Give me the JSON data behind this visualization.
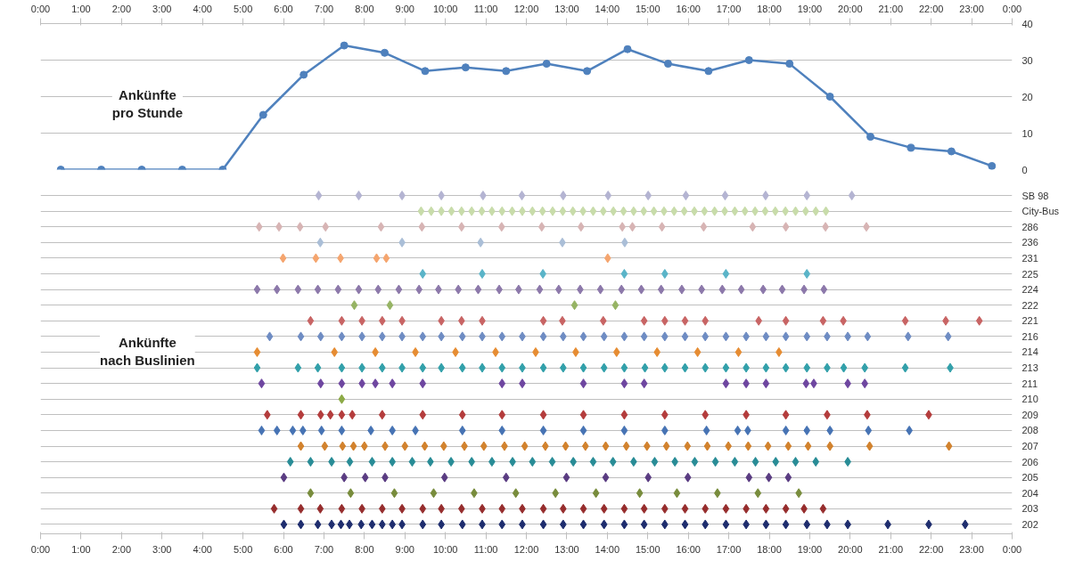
{
  "chart_data": [
    {
      "type": "line",
      "color": "#4f81bd",
      "marker": "circle",
      "line_style": "solid",
      "grid": "y",
      "annotations": [
        "Ankünfte\npro Stunde"
      ],
      "x": [
        0.5,
        1.5,
        2.5,
        3.5,
        4.5,
        5.5,
        6.5,
        7.5,
        8.5,
        9.5,
        10.5,
        11.5,
        12.5,
        13.5,
        14.5,
        15.5,
        16.5,
        17.5,
        18.5,
        19.5,
        20.5,
        21.5,
        22.5,
        23.5
      ],
      "values": [
        0,
        0,
        0,
        0,
        0,
        15,
        26,
        34,
        32,
        27,
        28,
        27,
        29,
        27,
        33,
        29,
        27,
        30,
        29,
        20,
        9,
        6,
        5,
        1
      ],
      "xlim": [
        0,
        24
      ],
      "xticks": [
        {
          "value": 0,
          "label": "0:00"
        },
        {
          "value": 1,
          "label": "1:00"
        },
        {
          "value": 2,
          "label": "2:00"
        },
        {
          "value": 3,
          "label": "3:00"
        },
        {
          "value": 4,
          "label": "4:00"
        },
        {
          "value": 5,
          "label": "5:00"
        },
        {
          "value": 6,
          "label": "6:00"
        },
        {
          "value": 7,
          "label": "7:00"
        },
        {
          "value": 8,
          "label": "8:00"
        },
        {
          "value": 9,
          "label": "9:00"
        },
        {
          "value": 10,
          "label": "10:00"
        },
        {
          "value": 11,
          "label": "11:00"
        },
        {
          "value": 12,
          "label": "12:00"
        },
        {
          "value": 13,
          "label": "13:00"
        },
        {
          "value": 14,
          "label": "14:00"
        },
        {
          "value": 15,
          "label": "15:00"
        },
        {
          "value": 16,
          "label": "16:00"
        },
        {
          "value": 17,
          "label": "17:00"
        },
        {
          "value": 18,
          "label": "18:00"
        },
        {
          "value": 19,
          "label": "19:00"
        },
        {
          "value": 20,
          "label": "20:00"
        },
        {
          "value": 21,
          "label": "21:00"
        },
        {
          "value": 22,
          "label": "22:00"
        },
        {
          "value": 23,
          "label": "23:00"
        },
        {
          "value": 24,
          "label": "0:00"
        }
      ],
      "ylim": [
        0,
        40
      ],
      "yticks": [
        0,
        10,
        20,
        30,
        40
      ]
    },
    {
      "type": "scatter",
      "marker": "diamond",
      "grid": "y",
      "orientation": "horizontal",
      "annotations": [
        "Ankünfte\nnach Buslinien"
      ],
      "xlim": [
        0,
        24
      ],
      "xticks": [
        {
          "value": 0,
          "label": "0:00"
        },
        {
          "value": 1,
          "label": "1:00"
        },
        {
          "value": 2,
          "label": "2:00"
        },
        {
          "value": 3,
          "label": "3:00"
        },
        {
          "value": 4,
          "label": "4:00"
        },
        {
          "value": 5,
          "label": "5:00"
        },
        {
          "value": 6,
          "label": "6:00"
        },
        {
          "value": 7,
          "label": "7:00"
        },
        {
          "value": 8,
          "label": "8:00"
        },
        {
          "value": 9,
          "label": "9:00"
        },
        {
          "value": 10,
          "label": "10:00"
        },
        {
          "value": 11,
          "label": "11:00"
        },
        {
          "value": 12,
          "label": "12:00"
        },
        {
          "value": 13,
          "label": "13:00"
        },
        {
          "value": 14,
          "label": "14:00"
        },
        {
          "value": 15,
          "label": "15:00"
        },
        {
          "value": 16,
          "label": "16:00"
        },
        {
          "value": 17,
          "label": "17:00"
        },
        {
          "value": 18,
          "label": "18:00"
        },
        {
          "value": 19,
          "label": "19:00"
        },
        {
          "value": 20,
          "label": "20:00"
        },
        {
          "value": 21,
          "label": "21:00"
        },
        {
          "value": 22,
          "label": "22:00"
        },
        {
          "value": 23,
          "label": "23:00"
        },
        {
          "value": 24,
          "label": "0:00"
        }
      ],
      "categories": [
        "SB 98",
        "City-Bus",
        "286",
        "236",
        "231",
        "225",
        "224",
        "222",
        "221",
        "216",
        "214",
        "213",
        "211",
        "210",
        "209",
        "208",
        "207",
        "206",
        "205",
        "204",
        "203",
        "202"
      ],
      "series": [
        {
          "color": "#b4b4d2",
          "values": [
            6.87,
            7.86,
            8.93,
            9.9,
            10.93,
            11.89,
            12.91,
            14.02,
            15.01,
            15.94,
            16.91,
            17.91,
            18.93,
            20.04
          ],
          "x": [
            "SB 98",
            "SB 98",
            "SB 98",
            "SB 98",
            "SB 98",
            "SB 98",
            "SB 98",
            "SB 98",
            "SB 98",
            "SB 98",
            "SB 98",
            "SB 98",
            "SB 98",
            "SB 98"
          ]
        },
        {
          "color": "#c8dcaa",
          "values": [
            9.4,
            9.65,
            9.9,
            10.15,
            10.4,
            10.65,
            10.9,
            11.15,
            11.4,
            11.65,
            11.9,
            12.15,
            12.4,
            12.65,
            12.9,
            13.15,
            13.4,
            13.65,
            13.9,
            14.15,
            14.4,
            14.65,
            14.9,
            15.15,
            15.4,
            15.65,
            15.9,
            16.15,
            16.4,
            16.65,
            16.9,
            17.15,
            17.4,
            17.65,
            17.9,
            18.15,
            18.4,
            18.65,
            18.9,
            19.15,
            19.4
          ],
          "x": [
            "City-Bus",
            "City-Bus",
            "City-Bus",
            "City-Bus",
            "City-Bus",
            "City-Bus",
            "City-Bus",
            "City-Bus",
            "City-Bus",
            "City-Bus",
            "City-Bus",
            "City-Bus",
            "City-Bus",
            "City-Bus",
            "City-Bus",
            "City-Bus",
            "City-Bus",
            "City-Bus",
            "City-Bus",
            "City-Bus",
            "City-Bus",
            "City-Bus",
            "City-Bus",
            "City-Bus",
            "City-Bus",
            "City-Bus",
            "City-Bus",
            "City-Bus",
            "City-Bus",
            "City-Bus",
            "City-Bus",
            "City-Bus",
            "City-Bus",
            "City-Bus",
            "City-Bus",
            "City-Bus",
            "City-Bus",
            "City-Bus",
            "City-Bus",
            "City-Bus",
            "City-Bus"
          ]
        },
        {
          "color": "#d7b4b4",
          "values": [
            5.4,
            5.89,
            6.41,
            7.04,
            8.41,
            9.42,
            10.4,
            11.39,
            12.38,
            13.35,
            14.37,
            14.62,
            15.35,
            16.38,
            17.59,
            18.41,
            19.39,
            20.4
          ],
          "x": [
            "286",
            "286",
            "286",
            "286",
            "286",
            "286",
            "286",
            "286",
            "286",
            "286",
            "286",
            "286",
            "286",
            "286",
            "286",
            "286",
            "286",
            "286"
          ]
        },
        {
          "color": "#aabed7",
          "values": [
            6.91,
            8.93,
            10.87,
            12.89,
            14.43
          ],
          "x": [
            "236",
            "236",
            "236",
            "236",
            "236"
          ]
        },
        {
          "color": "#f5a56e",
          "values": [
            5.99,
            6.8,
            7.41,
            8.3,
            8.54,
            14.01
          ],
          "x": [
            "231",
            "231",
            "231",
            "231",
            "231",
            "231"
          ]
        },
        {
          "color": "#5ab4c8",
          "values": [
            9.44,
            10.91,
            12.41,
            14.42,
            15.42,
            16.93,
            18.93
          ],
          "x": [
            "225",
            "225",
            "225",
            "225",
            "225",
            "225",
            "225"
          ]
        },
        {
          "color": "#8c78aa",
          "values": [
            5.35,
            5.84,
            6.36,
            6.85,
            7.35,
            7.86,
            8.34,
            8.85,
            9.35,
            9.83,
            10.32,
            10.81,
            11.33,
            11.81,
            12.33,
            12.8,
            13.33,
            13.83,
            14.35,
            14.84,
            15.33,
            15.84,
            16.33,
            16.84,
            17.31,
            17.85,
            18.32,
            18.86,
            19.35
          ],
          "x": [
            "224",
            "224",
            "224",
            "224",
            "224",
            "224",
            "224",
            "224",
            "224",
            "224",
            "224",
            "224",
            "224",
            "224",
            "224",
            "224",
            "224",
            "224",
            "224",
            "224",
            "224",
            "224",
            "224",
            "224",
            "224",
            "224",
            "224",
            "224",
            "224"
          ]
        },
        {
          "color": "#96b464",
          "values": [
            7.75,
            8.63,
            13.19,
            14.2
          ],
          "x": [
            "222",
            "222",
            "222",
            "222"
          ]
        },
        {
          "color": "#c86464",
          "values": [
            6.67,
            7.44,
            7.94,
            8.44,
            8.93,
            9.9,
            10.4,
            10.91,
            12.42,
            12.89,
            13.9,
            14.91,
            15.42,
            15.92,
            16.42,
            17.74,
            18.41,
            19.33,
            19.83,
            21.36,
            22.36,
            23.19
          ],
          "x": [
            "221",
            "221",
            "221",
            "221",
            "221",
            "221",
            "221",
            "221",
            "221",
            "221",
            "221",
            "221",
            "221",
            "221",
            "221",
            "221",
            "221",
            "221",
            "221",
            "221",
            "221",
            "221"
          ]
        },
        {
          "color": "#6e8cc3",
          "values": [
            5.66,
            6.43,
            6.92,
            7.44,
            7.94,
            8.44,
            8.93,
            9.44,
            9.9,
            10.42,
            10.91,
            11.4,
            11.9,
            12.42,
            12.91,
            13.41,
            13.92,
            14.42,
            14.91,
            15.42,
            15.92,
            16.42,
            16.93,
            17.43,
            17.92,
            18.41,
            18.93,
            19.43,
            19.94,
            20.43,
            21.43,
            22.42
          ],
          "x": [
            "216",
            "216",
            "216",
            "216",
            "216",
            "216",
            "216",
            "216",
            "216",
            "216",
            "216",
            "216",
            "216",
            "216",
            "216",
            "216",
            "216",
            "216",
            "216",
            "216",
            "216",
            "216",
            "216",
            "216",
            "216",
            "216",
            "216",
            "216",
            "216",
            "216",
            "216",
            "216"
          ]
        },
        {
          "color": "#e68c32",
          "values": [
            5.35,
            7.26,
            8.27,
            9.26,
            10.25,
            11.24,
            12.23,
            13.22,
            14.23,
            15.23,
            16.23,
            17.24,
            18.24
          ],
          "x": [
            "214",
            "214",
            "214",
            "214",
            "214",
            "214",
            "214",
            "214",
            "214",
            "214",
            "214",
            "214",
            "214"
          ]
        },
        {
          "color": "#32a0aa",
          "values": [
            5.35,
            6.36,
            6.85,
            7.44,
            7.94,
            8.44,
            8.93,
            9.44,
            9.9,
            10.42,
            10.91,
            11.4,
            11.9,
            12.42,
            12.91,
            13.41,
            13.92,
            14.42,
            14.93,
            15.42,
            15.92,
            16.42,
            16.93,
            17.43,
            17.92,
            18.41,
            18.93,
            19.43,
            19.84,
            20.36,
            21.36,
            22.47
          ],
          "x": [
            "213",
            "213",
            "213",
            "213",
            "213",
            "213",
            "213",
            "213",
            "213",
            "213",
            "213",
            "213",
            "213",
            "213",
            "213",
            "213",
            "213",
            "213",
            "213",
            "213",
            "213",
            "213",
            "213",
            "213",
            "213",
            "213",
            "213",
            "213",
            "213",
            "213",
            "213",
            "213"
          ]
        },
        {
          "color": "#6e46a0",
          "values": [
            5.46,
            6.92,
            7.44,
            7.94,
            8.27,
            8.69,
            9.44,
            11.4,
            11.9,
            13.41,
            14.42,
            14.91,
            16.93,
            17.43,
            17.92,
            18.91,
            19.1,
            19.94,
            20.36
          ],
          "x": [
            "211",
            "211",
            "211",
            "211",
            "211",
            "211",
            "211",
            "211",
            "211",
            "211",
            "211",
            "211",
            "211",
            "211",
            "211",
            "211",
            "211",
            "211",
            "211"
          ]
        },
        {
          "color": "#8caa46",
          "values": [
            7.44
          ],
          "x": [
            "210"
          ]
        },
        {
          "color": "#b43c3c",
          "values": [
            5.6,
            6.43,
            6.92,
            7.16,
            7.44,
            7.7,
            8.44,
            9.44,
            10.42,
            11.4,
            12.42,
            13.41,
            14.42,
            15.42,
            16.42,
            17.43,
            18.41,
            19.43,
            20.42,
            21.94
          ],
          "x": [
            "209",
            "209",
            "209",
            "209",
            "209",
            "209",
            "209",
            "209",
            "209",
            "209",
            "209",
            "209",
            "209",
            "209",
            "209",
            "209",
            "209",
            "209",
            "209",
            "209"
          ]
        },
        {
          "color": "#4673b4",
          "values": [
            5.46,
            5.84,
            6.23,
            6.48,
            6.94,
            7.44,
            8.16,
            8.69,
            9.26,
            10.42,
            11.4,
            12.42,
            13.41,
            14.42,
            15.42,
            16.45,
            17.22,
            17.47,
            18.41,
            18.93,
            19.5,
            20.45,
            21.46
          ],
          "x": [
            "208",
            "208",
            "208",
            "208",
            "208",
            "208",
            "208",
            "208",
            "208",
            "208",
            "208",
            "208",
            "208",
            "208",
            "208",
            "208",
            "208",
            "208",
            "208",
            "208",
            "208",
            "208",
            "208"
          ]
        },
        {
          "color": "#d2822d",
          "values": [
            6.43,
            7.02,
            7.46,
            7.73,
            8.0,
            8.51,
            9.0,
            9.49,
            9.96,
            10.47,
            10.95,
            11.46,
            11.96,
            12.47,
            12.97,
            13.46,
            13.96,
            14.47,
            14.98,
            15.46,
            15.98,
            16.47,
            16.99,
            17.48,
            17.97,
            18.47,
            18.96,
            19.5,
            20.48,
            22.44
          ],
          "x": [
            "207",
            "207",
            "207",
            "207",
            "207",
            "207",
            "207",
            "207",
            "207",
            "207",
            "207",
            "207",
            "207",
            "207",
            "207",
            "207",
            "207",
            "207",
            "207",
            "207",
            "207",
            "207",
            "207",
            "207",
            "207",
            "207",
            "207",
            "207",
            "207",
            "207"
          ]
        },
        {
          "color": "#288c96",
          "values": [
            6.17,
            6.67,
            7.19,
            7.64,
            8.19,
            8.69,
            9.18,
            9.63,
            10.14,
            10.65,
            11.15,
            11.66,
            12.15,
            12.64,
            13.16,
            13.65,
            14.14,
            14.65,
            15.17,
            15.67,
            16.16,
            16.67,
            17.15,
            17.66,
            18.16,
            18.65,
            19.15,
            19.94
          ],
          "x": [
            "206",
            "206",
            "206",
            "206",
            "206",
            "206",
            "206",
            "206",
            "206",
            "206",
            "206",
            "206",
            "206",
            "206",
            "206",
            "206",
            "206",
            "206",
            "206",
            "206",
            "206",
            "206",
            "206",
            "206",
            "206",
            "206",
            "206",
            "206"
          ]
        },
        {
          "color": "#5a3c82",
          "values": [
            6.01,
            7.5,
            8.02,
            8.51,
            9.98,
            11.5,
            12.99,
            13.96,
            15.01,
            15.99,
            17.5,
            17.99,
            18.47
          ],
          "x": [
            "205",
            "205",
            "205",
            "205",
            "205",
            "205",
            "205",
            "205",
            "205",
            "205",
            "205",
            "205",
            "205"
          ]
        },
        {
          "color": "#788c3c",
          "values": [
            6.67,
            7.66,
            8.74,
            9.71,
            10.71,
            11.74,
            12.72,
            13.72,
            14.8,
            15.72,
            16.72,
            17.72,
            18.73
          ],
          "x": [
            "204",
            "204",
            "204",
            "204",
            "204",
            "204",
            "204",
            "204",
            "204",
            "204",
            "204",
            "204",
            "204"
          ]
        },
        {
          "color": "#962d2d",
          "values": [
            5.77,
            6.43,
            6.91,
            7.44,
            7.94,
            8.44,
            8.93,
            9.44,
            9.9,
            10.4,
            10.91,
            11.4,
            11.9,
            12.42,
            12.91,
            13.41,
            13.92,
            14.42,
            14.91,
            15.42,
            15.92,
            16.42,
            16.93,
            17.43,
            17.92,
            18.41,
            18.86,
            19.33
          ],
          "x": [
            "203",
            "203",
            "203",
            "203",
            "203",
            "203",
            "203",
            "203",
            "203",
            "203",
            "203",
            "203",
            "203",
            "203",
            "203",
            "203",
            "203",
            "203",
            "203",
            "203",
            "203",
            "203",
            "203",
            "203",
            "203",
            "203",
            "203",
            "203"
          ]
        },
        {
          "color": "#1e2d6e",
          "values": [
            6.01,
            6.43,
            6.85,
            7.19,
            7.42,
            7.63,
            7.92,
            8.19,
            8.44,
            8.69,
            8.93,
            9.44,
            9.9,
            10.42,
            10.91,
            11.4,
            11.9,
            12.42,
            12.91,
            13.41,
            13.92,
            14.42,
            14.91,
            15.42,
            15.92,
            16.42,
            16.93,
            17.43,
            17.92,
            18.41,
            18.93,
            19.43,
            19.94,
            20.93,
            21.94,
            22.84
          ],
          "x": [
            "202",
            "202",
            "202",
            "202",
            "202",
            "202",
            "202",
            "202",
            "202",
            "202",
            "202",
            "202",
            "202",
            "202",
            "202",
            "202",
            "202",
            "202",
            "202",
            "202",
            "202",
            "202",
            "202",
            "202",
            "202",
            "202",
            "202",
            "202",
            "202",
            "202",
            "202",
            "202",
            "202",
            "202",
            "202",
            "202"
          ]
        }
      ]
    }
  ]
}
